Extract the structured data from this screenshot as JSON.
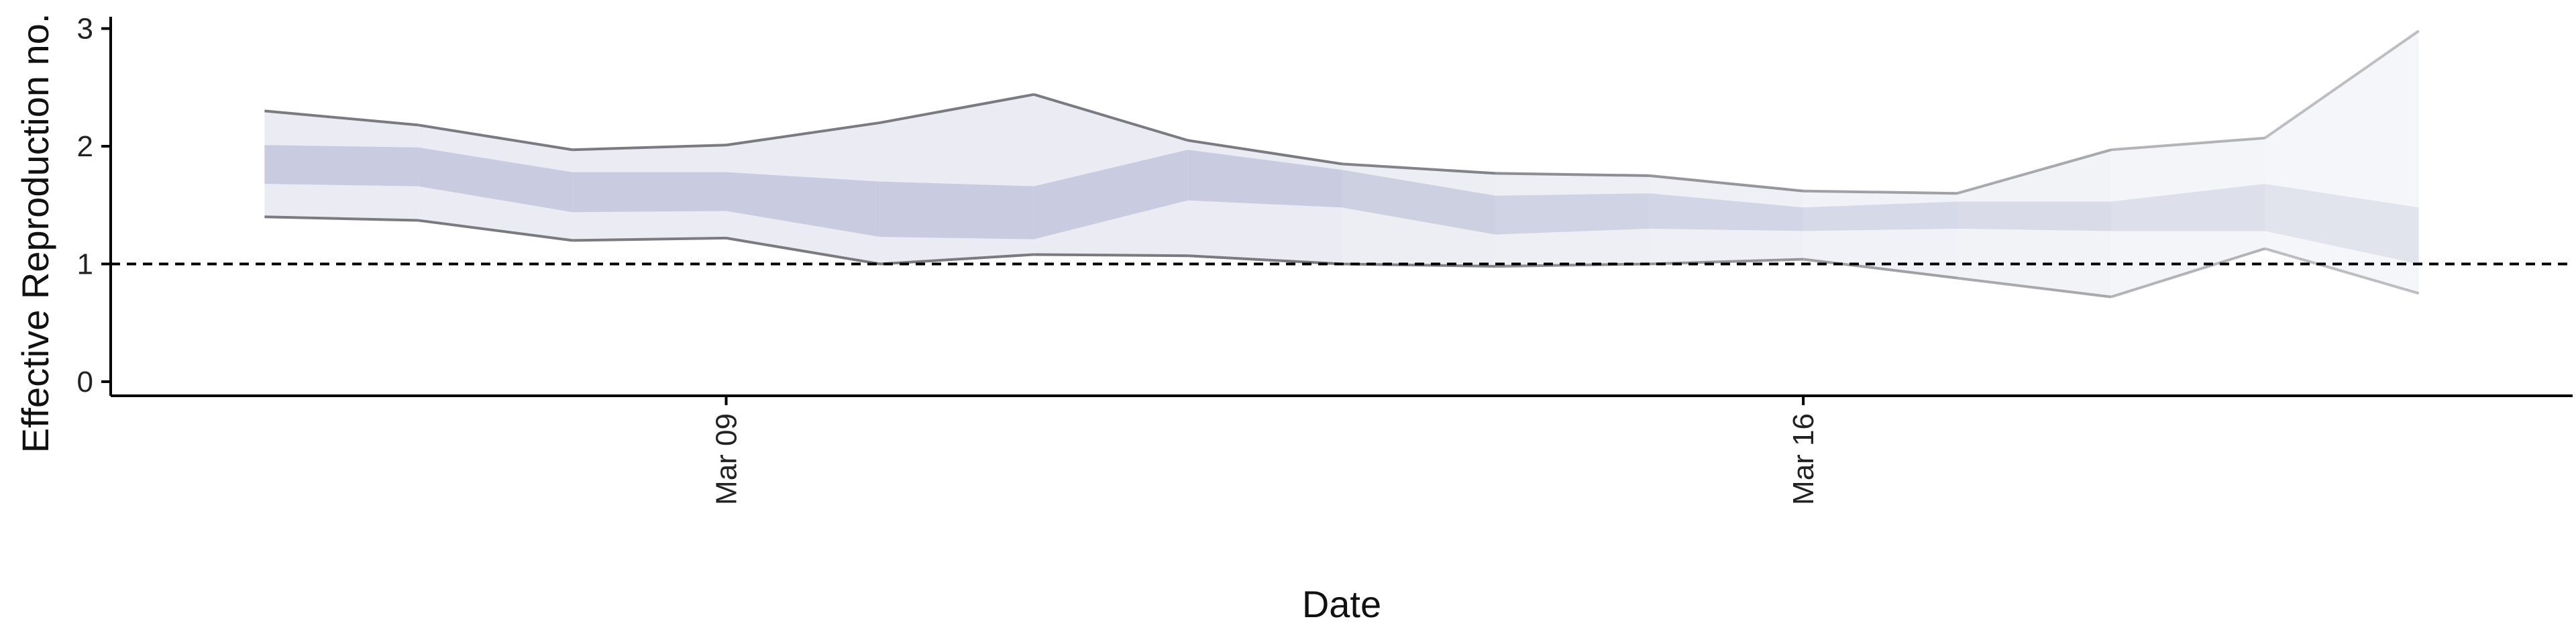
{
  "chart_data": {
    "type": "area",
    "title": "",
    "xlabel": "Date",
    "ylabel": "Effective Reproduction no.",
    "x_tick_labels": [
      "Mar 09",
      "Mar 16"
    ],
    "x_tick_dates": [
      "2020-03-09",
      "2020-03-16"
    ],
    "y_ticks": [
      0,
      1,
      2,
      3
    ],
    "ylim": [
      -0.12,
      3.1
    ],
    "xlim": [
      "2020-03-05",
      "2020-03-21"
    ],
    "dates": [
      "2020-03-06",
      "2020-03-07",
      "2020-03-08",
      "2020-03-09",
      "2020-03-10",
      "2020-03-11",
      "2020-03-12",
      "2020-03-13",
      "2020-03-14",
      "2020-03-15",
      "2020-03-16",
      "2020-03-17",
      "2020-03-18",
      "2020-03-19",
      "2020-03-20"
    ],
    "series": [
      {
        "name": "",
        "lower": [
          1.4,
          1.37,
          1.2,
          1.22,
          1.0,
          1.08,
          1.07,
          1.0,
          0.98,
          1.0,
          1.04,
          0.88,
          0.72,
          1.13,
          0.75
        ],
        "upper": [
          2.3,
          2.18,
          1.97,
          2.01,
          2.2,
          2.44,
          2.05,
          1.85,
          1.77,
          1.75,
          1.62,
          1.6,
          1.97,
          2.07,
          2.98
        ]
      },
      {
        "name": "",
        "lower": [
          1.68,
          1.66,
          1.44,
          1.45,
          1.23,
          1.21,
          1.54,
          1.48,
          1.25,
          1.3,
          1.28,
          1.3,
          1.28,
          1.28,
          1.0
        ],
        "upper": [
          2.01,
          1.99,
          1.78,
          1.78,
          1.7,
          1.66,
          1.97,
          1.8,
          1.58,
          1.6,
          1.48,
          1.53,
          1.53,
          1.68,
          1.48
        ]
      }
    ],
    "reference_line": 1,
    "grid": false,
    "legend": "none",
    "colors": {
      "outer_band": "#e4e6ef",
      "inner_band": "#c3c7dc",
      "bound_line": "#7a7a80",
      "axis": "#000000",
      "reference_line": "#000000"
    }
  }
}
